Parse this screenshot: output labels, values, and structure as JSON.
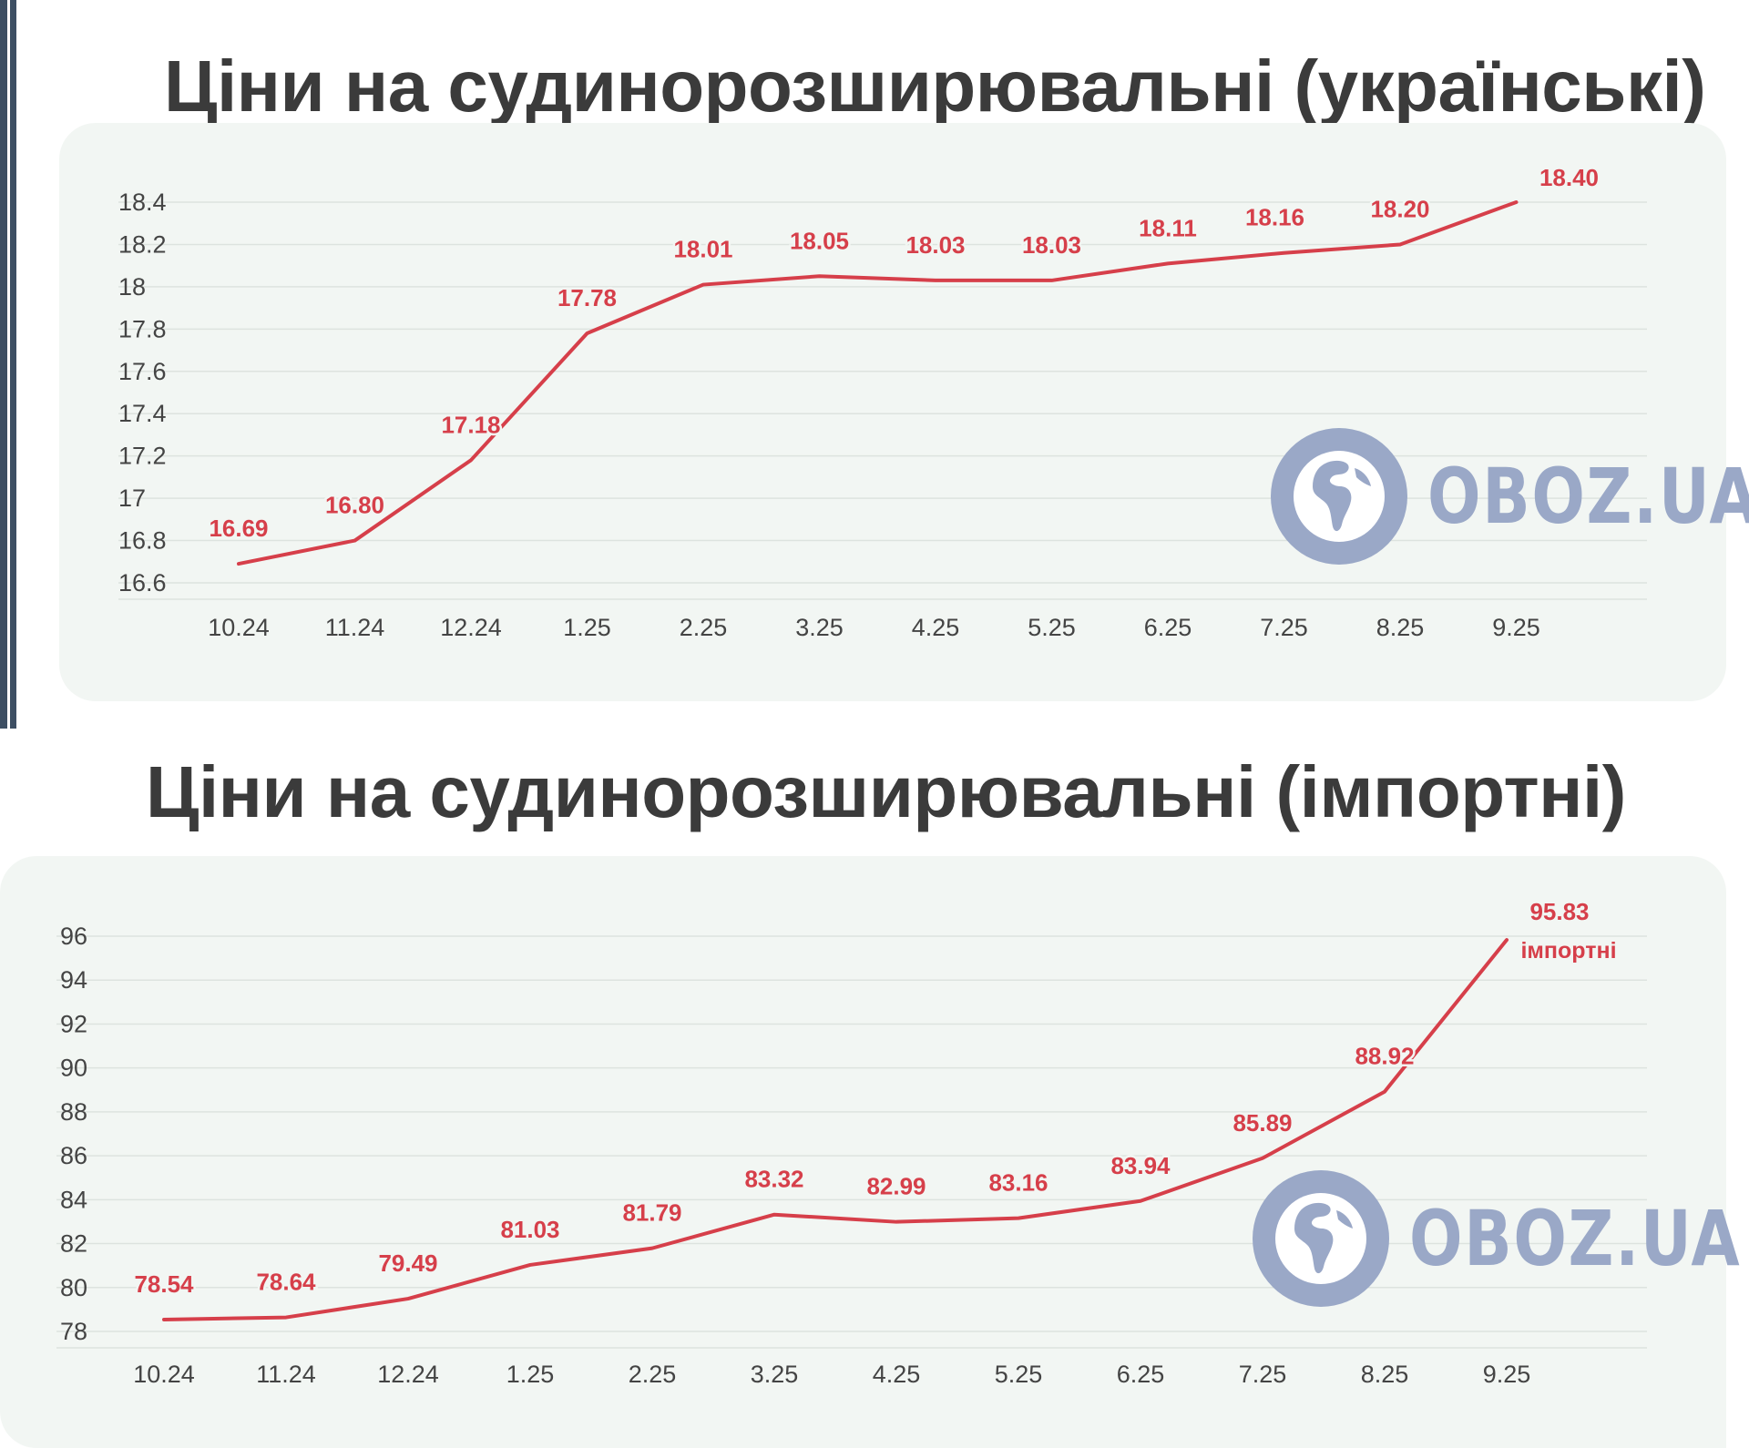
{
  "logo": {
    "text": "OBOZ.UA",
    "icon": "globe-icon",
    "color": "#9aa8c7"
  },
  "colors": {
    "line": "#d63f4a",
    "label": "#d63f4a",
    "grid": "#dde3df",
    "panel": "#f2f6f3",
    "title": "#3b3b3b",
    "axis_text": "#444444"
  },
  "chart_data": [
    {
      "type": "line",
      "title": "Ціни на судинорозширювальні (українські)",
      "categories": [
        "10.24",
        "11.24",
        "12.24",
        "1.25",
        "2.25",
        "3.25",
        "4.25",
        "5.25",
        "6.25",
        "7.25",
        "8.25",
        "9.25"
      ],
      "values": [
        16.69,
        16.8,
        17.18,
        17.78,
        18.01,
        18.05,
        18.03,
        18.03,
        18.11,
        18.16,
        18.2,
        18.4
      ],
      "data_labels": [
        "16.69",
        "16.80",
        "17.18",
        "17.78",
        "18.01",
        "18.05",
        "18.03",
        "18.03",
        "18.11",
        "18.16",
        "18.20",
        "18.40"
      ],
      "yticks": [
        "16.6",
        "16.8",
        "17",
        "17.2",
        "17.4",
        "17.6",
        "17.8",
        "18",
        "18.2",
        "18.4"
      ],
      "ylim": [
        16.6,
        18.4
      ],
      "grid": true,
      "xlabel": "",
      "ylabel": ""
    },
    {
      "type": "line",
      "title": "Ціни на судинорозширювальні (імпортні)",
      "categories": [
        "10.24",
        "11.24",
        "12.24",
        "1.25",
        "2.25",
        "3.25",
        "4.25",
        "5.25",
        "6.25",
        "7.25",
        "8.25",
        "9.25"
      ],
      "values": [
        78.54,
        78.64,
        79.49,
        81.03,
        81.79,
        83.32,
        82.99,
        83.16,
        83.94,
        85.89,
        88.92,
        95.83
      ],
      "data_labels": [
        "78.54",
        "78.64",
        "79.49",
        "81.03",
        "81.79",
        "83.32",
        "82.99",
        "83.16",
        "83.94",
        "85.89",
        "88.92",
        "95.83"
      ],
      "end_label": "імпортні",
      "yticks": [
        "78",
        "80",
        "82",
        "84",
        "86",
        "88",
        "90",
        "92",
        "94",
        "96"
      ],
      "ylim": [
        78,
        96
      ],
      "grid": true,
      "xlabel": "",
      "ylabel": ""
    }
  ]
}
